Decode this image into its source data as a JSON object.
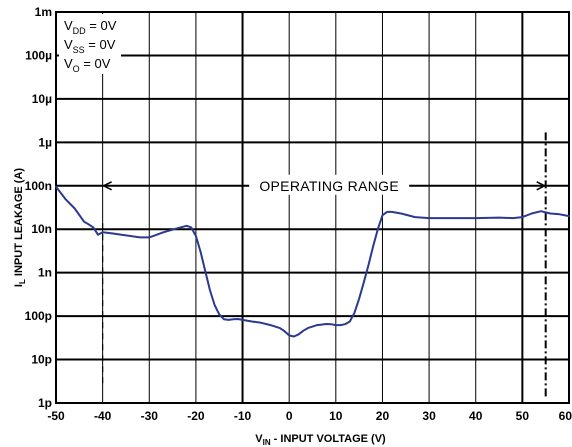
{
  "chart_data": {
    "type": "line",
    "title": "",
    "xlabel": "VIN - INPUT VOLTAGE (V)",
    "xlabel_main": "V",
    "xlabel_sub": "IN",
    "xlabel_rest": " - INPUT VOLTAGE (V)",
    "ylabel": "IL INPUT LEAKAGE (A)",
    "ylabel_main": "I",
    "ylabel_sub": "L",
    "ylabel_rest": " INPUT LEAKAGE (A)",
    "xlim": [
      -50,
      60
    ],
    "ylim": [
      1e-12,
      0.001
    ],
    "yscale": "log",
    "grid": true,
    "x_ticks": [
      -50,
      -40,
      -30,
      -20,
      -10,
      0,
      10,
      20,
      30,
      40,
      50,
      60
    ],
    "x_tick_labels": [
      "-50",
      "-40",
      "-30",
      "-20",
      "-10",
      "0",
      "10",
      "20",
      "30",
      "40",
      "50",
      "60"
    ],
    "y_ticks": [
      0.001,
      0.0001,
      1e-05,
      1e-06,
      1e-07,
      1e-08,
      1e-09,
      1e-10,
      1e-11,
      1e-12
    ],
    "y_tick_labels": [
      "1m",
      "100µ",
      "10µ",
      "1µ",
      "100n",
      "10n",
      "1n",
      "100p",
      "10p",
      "1p"
    ],
    "conditions": [
      {
        "main": "V",
        "sub": "DD",
        "rest": " = 0V"
      },
      {
        "main": "V",
        "sub": "SS",
        "rest": " = 0V"
      },
      {
        "main": "V",
        "sub": "O",
        "rest": " = 0V"
      }
    ],
    "annotation": {
      "text": "OPERATING RANGE",
      "x_start": -40,
      "x_end": 55,
      "y": 1e-07
    },
    "series": [
      {
        "color": "#2b3a8f",
        "x": [
          -50,
          -48,
          -46,
          -44,
          -43,
          -42,
          -41,
          -40,
          -38,
          -35,
          -32,
          -30,
          -27,
          -24,
          -22,
          -21,
          -20,
          -19,
          -18,
          -17,
          -16,
          -15,
          -14,
          -13,
          -12,
          -11,
          -10,
          -8,
          -6,
          -4,
          -2,
          -1,
          0,
          1,
          2,
          3,
          4,
          6,
          8,
          9,
          10,
          11,
          12,
          13,
          14,
          15,
          16,
          17,
          18,
          19,
          20,
          21,
          22,
          24,
          27,
          30,
          35,
          40,
          45,
          48,
          50,
          52,
          54,
          56,
          58,
          60
        ],
        "y": [
          9.5e-08,
          5e-08,
          3e-08,
          1.5e-08,
          1.3e-08,
          1.1e-08,
          7.5e-09,
          8.5e-09,
          8e-09,
          7.2e-09,
          6.5e-09,
          6.5e-09,
          8.5e-09,
          1.05e-08,
          1.2e-08,
          1.1e-08,
          7e-09,
          3e-09,
          1.1e-09,
          4e-10,
          1.8e-10,
          1.1e-10,
          8.5e-11,
          8.2e-11,
          8.5e-11,
          8.6e-11,
          8.2e-11,
          7.5e-11,
          7e-11,
          6.2e-11,
          5.3e-11,
          4.5e-11,
          3.6e-11,
          3.4e-11,
          3.8e-11,
          4.6e-11,
          5.3e-11,
          6.2e-11,
          6.6e-11,
          6.5e-11,
          6.2e-11,
          6.2e-11,
          6.5e-11,
          7.5e-11,
          1.2e-10,
          2.5e-10,
          6e-10,
          1.5e-09,
          4e-09,
          1e-08,
          2.1e-08,
          2.5e-08,
          2.5e-08,
          2.3e-08,
          1.9e-08,
          1.8e-08,
          1.8e-08,
          1.8e-08,
          1.85e-08,
          1.8e-08,
          1.9e-08,
          2.3e-08,
          2.6e-08,
          2.3e-08,
          2.2e-08,
          2e-08
        ]
      }
    ]
  }
}
